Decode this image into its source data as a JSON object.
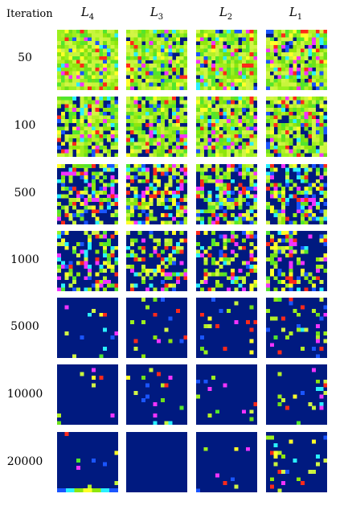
{
  "header": {
    "row_axis_label": "Iteration",
    "columns": [
      {
        "base": "L",
        "sub": "4"
      },
      {
        "base": "L",
        "sub": "3"
      },
      {
        "base": "L",
        "sub": "2"
      },
      {
        "base": "L",
        "sub": "1"
      }
    ]
  },
  "rows": [
    "50",
    "100",
    "500",
    "1000",
    "5000",
    "10000",
    "20000"
  ],
  "colors": {
    "background": "#001a80",
    "greenish": "#8ee60d",
    "accents": [
      "#ff2a1a",
      "#1a55ff",
      "#29f0ff",
      "#ffff29",
      "#f233ff"
    ]
  },
  "chart_data": {
    "type": "heatmap",
    "layout": "grid of 7 iterations x 4 layers",
    "note": "Each cell shows a 16x16 activation map; density of bright pixels decreases with iteration.",
    "activity_levels": [
      [
        1.0,
        0.92,
        0.95,
        0.93
      ],
      [
        0.82,
        0.82,
        0.85,
        0.83
      ],
      [
        0.55,
        0.55,
        0.6,
        0.58
      ],
      [
        0.38,
        0.35,
        0.38,
        0.4
      ],
      [
        0.08,
        0.07,
        0.1,
        0.14
      ],
      [
        0.04,
        0.03,
        0.05,
        0.12
      ],
      [
        0.01,
        0.005,
        0.02,
        0.1
      ]
    ]
  }
}
